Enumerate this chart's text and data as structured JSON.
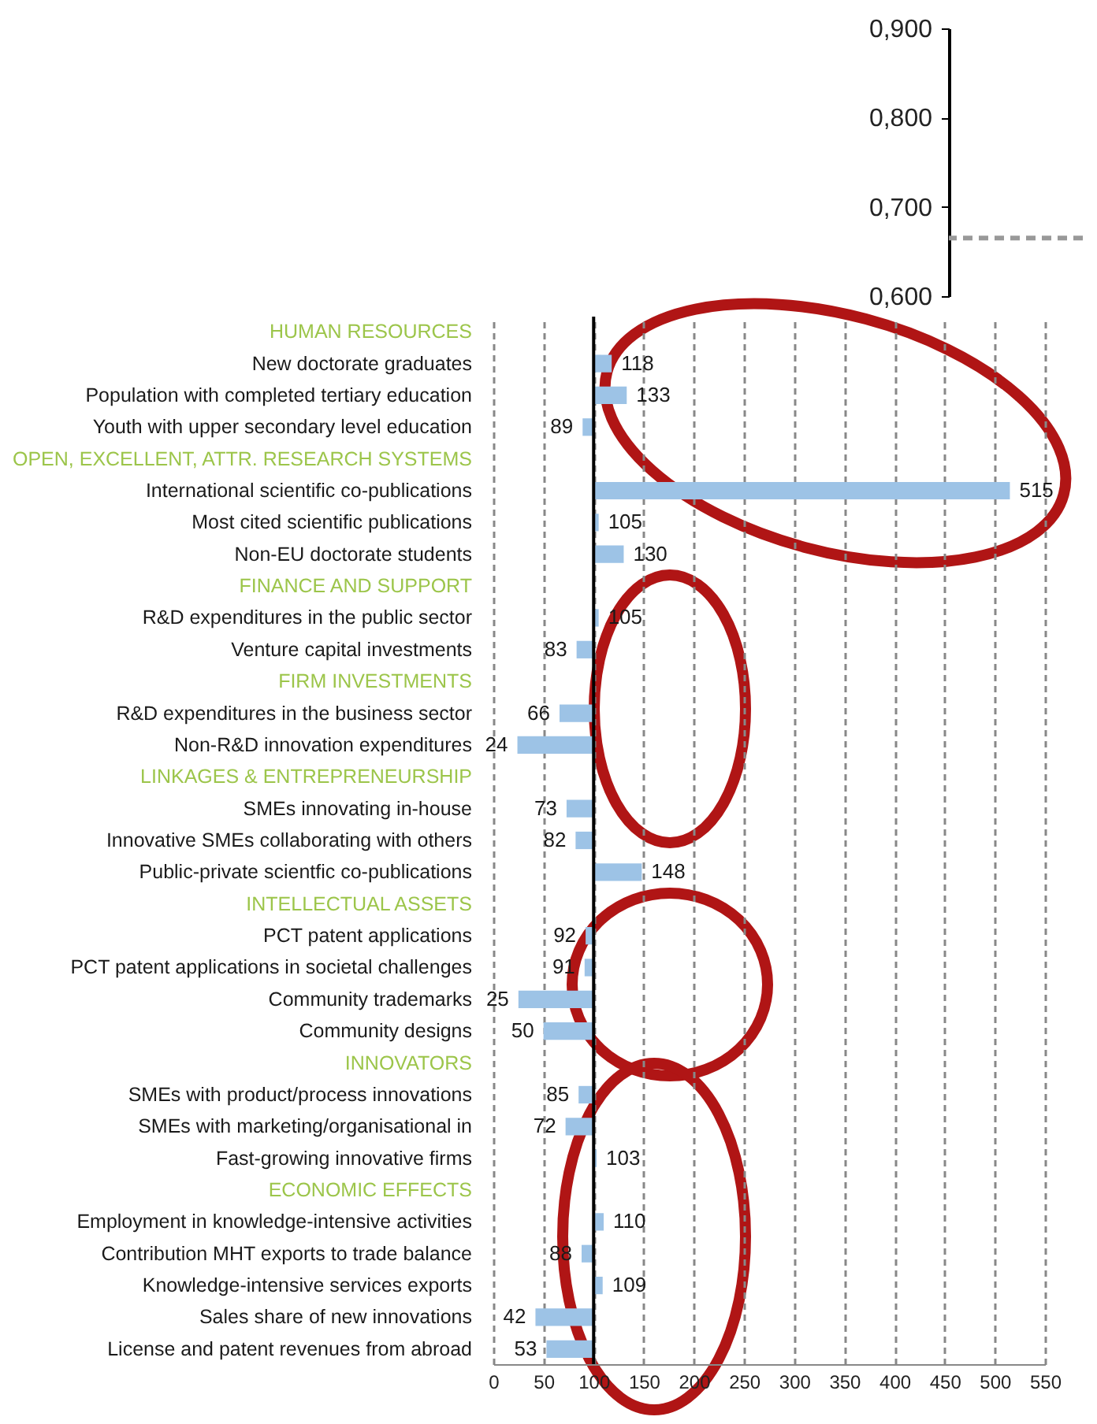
{
  "chart_data": [
    {
      "type": "line",
      "categories": [
        null
      ],
      "values": [
        null
      ],
      "ylim": [
        0.6,
        0.9
      ],
      "yticks": [
        {
          "value": 0.6,
          "label": "0,600"
        },
        {
          "value": 0.7,
          "label": "0,700"
        },
        {
          "value": 0.8,
          "label": "0,800"
        },
        {
          "value": 0.9,
          "label": "0,900"
        }
      ],
      "tick_labels": "y",
      "ref_lines": [
        {
          "axis": "y",
          "value": 0.665,
          "color": "#999999",
          "line_style": "dashed"
        }
      ]
    },
    {
      "type": "bar",
      "orientation": "horizontal",
      "color": "#9dc3e6",
      "grid": "x",
      "xlim": [
        0,
        550
      ],
      "xticks": [
        0,
        50,
        100,
        150,
        200,
        250,
        300,
        350,
        400,
        450,
        500,
        550
      ],
      "ref_lines": [
        {
          "axis": "x",
          "value": 100,
          "color": "#000000"
        }
      ],
      "categories": [
        "HUMAN RESOURCES",
        "New doctorate graduates",
        "Population with completed tertiary education",
        "Youth with upper secondary level education",
        "OPEN, EXCELLENT, ATTR. RESEARCH SYSTEMS",
        "International scientific co-publications",
        "Most cited scientific publications",
        "Non-EU doctorate students",
        "FINANCE AND SUPPORT",
        "R&D expenditures in the public sector",
        "Venture capital investments",
        "FIRM INVESTMENTS",
        "R&D expenditures in the business sector",
        "Non-R&D innovation expenditures",
        "LINKAGES & ENTREPRENEURSHIP",
        "SMEs innovating in-house",
        "Innovative SMEs collaborating with others",
        "Public-private scientfic co-publications",
        "INTELLECTUAL ASSETS",
        "PCT patent applications",
        "PCT patent applications in societal challenges",
        "Community trademarks",
        "Community designs",
        "INNOVATORS",
        "SMEs with product/process innovations",
        "SMEs with marketing/organisational in",
        "Fast-growing innovative firms",
        "ECONOMIC EFFECTS",
        "Employment in knowledge-intensive activities",
        "Contribution MHT exports to trade balance",
        "Knowledge-intensive services exports",
        "Sales share of new innovations",
        "License and patent revenues from abroad"
      ],
      "base": [
        null,
        100,
        100,
        100,
        null,
        100,
        100,
        100,
        null,
        100,
        100,
        null,
        100,
        100,
        null,
        100,
        100,
        100,
        null,
        100,
        100,
        100,
        100,
        null,
        100,
        100,
        100,
        null,
        100,
        100,
        100,
        100,
        100
      ],
      "values": [
        null,
        18,
        33,
        -11,
        null,
        415,
        5,
        30,
        null,
        5,
        -17,
        null,
        -34,
        -76,
        null,
        -27,
        -18,
        48,
        null,
        -8,
        -9,
        -75,
        -50,
        null,
        -15,
        -28,
        3,
        null,
        10,
        -12,
        9,
        -58,
        -47
      ],
      "value_labels": [
        null,
        "118",
        "133",
        "89",
        null,
        "515",
        "105",
        "130",
        null,
        "105",
        "83",
        null,
        "66",
        "24",
        null,
        "73",
        "82",
        "148",
        null,
        "92",
        "91",
        "25",
        "50",
        null,
        "85",
        "72",
        "103",
        null,
        "110",
        "88",
        "109",
        "42",
        "53"
      ]
    }
  ]
}
